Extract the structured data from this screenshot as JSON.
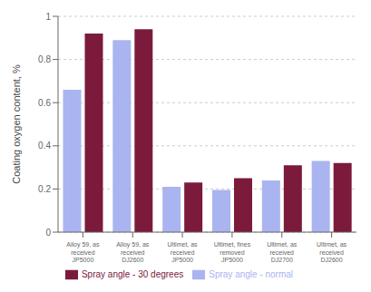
{
  "chart_data": {
    "type": "bar",
    "categories": [
      "Alloy 59, as\nreceived\nJP5000",
      "Alloy 59, as\nreceived\nDJ2600",
      "Ultimet, as\nreceived\nJP5000",
      "Ultimet, fines\nremoved\nJP5000",
      "Ultimet, as\nreceived\nDJ2700",
      "Ultimet, as\nreceived\nDJ2600"
    ],
    "series": [
      {
        "name": "Spray angle - normal",
        "color": "#aab4f0",
        "values": [
          0.66,
          0.89,
          0.21,
          0.195,
          0.24,
          0.33
        ]
      },
      {
        "name": "Spray angle - 30 degrees",
        "color": "#7b1a3a",
        "values": [
          0.92,
          0.94,
          0.23,
          0.25,
          0.31,
          0.32
        ]
      }
    ],
    "ylabel": "Coating oxygen content, %",
    "ylim": [
      0,
      1.0
    ],
    "yticks": [
      0,
      0.2,
      0.4,
      0.6,
      0.8,
      1
    ],
    "grid": true,
    "legend": "bottom"
  }
}
